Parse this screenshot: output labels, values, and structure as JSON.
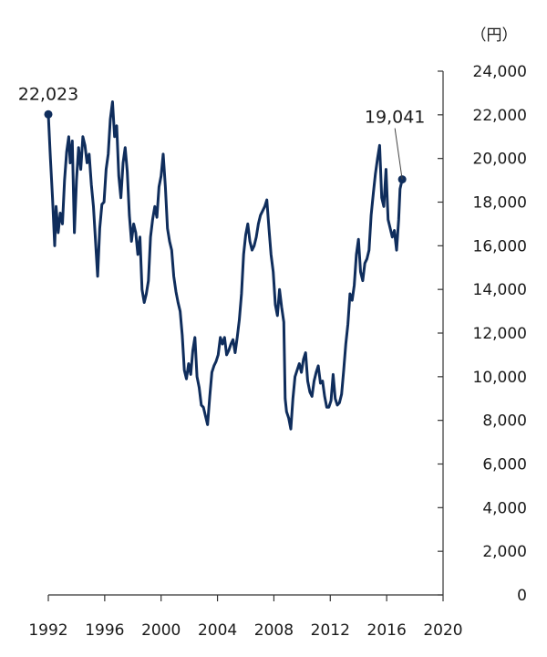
{
  "chart_data": {
    "type": "line",
    "unit_label": "（円）",
    "x_axis": {
      "min": 1992,
      "max": 2020,
      "ticks": [
        1992,
        1996,
        2000,
        2004,
        2008,
        2012,
        2016,
        2020
      ],
      "tick_labels": [
        "1992",
        "1996",
        "2000",
        "2004",
        "2008",
        "2012",
        "2016",
        "2020"
      ]
    },
    "y_axis": {
      "min": 0,
      "max": 24000,
      "position": "right",
      "ticks": [
        0,
        2000,
        4000,
        6000,
        8000,
        10000,
        12000,
        14000,
        16000,
        18000,
        20000,
        22000,
        24000
      ],
      "tick_labels": [
        "0",
        "2,000",
        "4,000",
        "6,000",
        "8,000",
        "10,000",
        "12,000",
        "14,000",
        "16,000",
        "18,000",
        "20,000",
        "22,000",
        "24,000"
      ]
    },
    "grid": false,
    "legend": "none",
    "colors": {
      "line": "#0f2d5c",
      "axis": "#333333"
    },
    "series": [
      {
        "points": [
          [
            1992.0,
            22023
          ],
          [
            1992.15,
            20000
          ],
          [
            1992.3,
            18200
          ],
          [
            1992.45,
            16000
          ],
          [
            1992.55,
            17800
          ],
          [
            1992.7,
            16600
          ],
          [
            1992.85,
            17500
          ],
          [
            1993.0,
            17000
          ],
          [
            1993.15,
            19000
          ],
          [
            1993.3,
            20300
          ],
          [
            1993.45,
            21000
          ],
          [
            1993.55,
            19800
          ],
          [
            1993.7,
            20800
          ],
          [
            1993.85,
            16600
          ],
          [
            1994.0,
            19000
          ],
          [
            1994.15,
            20500
          ],
          [
            1994.3,
            19500
          ],
          [
            1994.45,
            21000
          ],
          [
            1994.6,
            20600
          ],
          [
            1994.75,
            19800
          ],
          [
            1994.9,
            20200
          ],
          [
            1995.05,
            18800
          ],
          [
            1995.2,
            17800
          ],
          [
            1995.35,
            16200
          ],
          [
            1995.5,
            14600
          ],
          [
            1995.65,
            16800
          ],
          [
            1995.8,
            17900
          ],
          [
            1995.95,
            18000
          ],
          [
            1996.1,
            19500
          ],
          [
            1996.25,
            20200
          ],
          [
            1996.4,
            21800
          ],
          [
            1996.55,
            22600
          ],
          [
            1996.7,
            21000
          ],
          [
            1996.85,
            21500
          ],
          [
            1997.0,
            19200
          ],
          [
            1997.15,
            18200
          ],
          [
            1997.3,
            19800
          ],
          [
            1997.45,
            20500
          ],
          [
            1997.6,
            19400
          ],
          [
            1997.75,
            17400
          ],
          [
            1997.9,
            16200
          ],
          [
            1998.05,
            17000
          ],
          [
            1998.2,
            16600
          ],
          [
            1998.35,
            15600
          ],
          [
            1998.5,
            16400
          ],
          [
            1998.65,
            14000
          ],
          [
            1998.8,
            13400
          ],
          [
            1998.95,
            13800
          ],
          [
            1999.1,
            14400
          ],
          [
            1999.25,
            16400
          ],
          [
            1999.4,
            17200
          ],
          [
            1999.55,
            17800
          ],
          [
            1999.7,
            17300
          ],
          [
            1999.85,
            18700
          ],
          [
            2000.0,
            19200
          ],
          [
            2000.15,
            20200
          ],
          [
            2000.3,
            18700
          ],
          [
            2000.45,
            16800
          ],
          [
            2000.6,
            16200
          ],
          [
            2000.75,
            15800
          ],
          [
            2000.9,
            14600
          ],
          [
            2001.05,
            13900
          ],
          [
            2001.2,
            13400
          ],
          [
            2001.35,
            13000
          ],
          [
            2001.5,
            11900
          ],
          [
            2001.65,
            10300
          ],
          [
            2001.8,
            9900
          ],
          [
            2001.95,
            10600
          ],
          [
            2002.1,
            10100
          ],
          [
            2002.25,
            11200
          ],
          [
            2002.4,
            11800
          ],
          [
            2002.55,
            10000
          ],
          [
            2002.7,
            9500
          ],
          [
            2002.85,
            8700
          ],
          [
            2003.0,
            8600
          ],
          [
            2003.15,
            8200
          ],
          [
            2003.3,
            7800
          ],
          [
            2003.45,
            9100
          ],
          [
            2003.6,
            10200
          ],
          [
            2003.75,
            10500
          ],
          [
            2003.9,
            10700
          ],
          [
            2004.05,
            11000
          ],
          [
            2004.2,
            11800
          ],
          [
            2004.35,
            11500
          ],
          [
            2004.5,
            11800
          ],
          [
            2004.65,
            11000
          ],
          [
            2004.8,
            11200
          ],
          [
            2004.95,
            11500
          ],
          [
            2005.1,
            11700
          ],
          [
            2005.25,
            11100
          ],
          [
            2005.4,
            11800
          ],
          [
            2005.55,
            12600
          ],
          [
            2005.7,
            13800
          ],
          [
            2005.85,
            15600
          ],
          [
            2006.0,
            16500
          ],
          [
            2006.15,
            17000
          ],
          [
            2006.3,
            16200
          ],
          [
            2006.45,
            15800
          ],
          [
            2006.6,
            16000
          ],
          [
            2006.75,
            16400
          ],
          [
            2006.9,
            17000
          ],
          [
            2007.05,
            17400
          ],
          [
            2007.2,
            17600
          ],
          [
            2007.35,
            17800
          ],
          [
            2007.5,
            18100
          ],
          [
            2007.65,
            16800
          ],
          [
            2007.8,
            15600
          ],
          [
            2007.95,
            14800
          ],
          [
            2008.1,
            13300
          ],
          [
            2008.25,
            12800
          ],
          [
            2008.4,
            14000
          ],
          [
            2008.55,
            13200
          ],
          [
            2008.7,
            12500
          ],
          [
            2008.8,
            9000
          ],
          [
            2008.9,
            8400
          ],
          [
            2009.05,
            8100
          ],
          [
            2009.2,
            7600
          ],
          [
            2009.35,
            9000
          ],
          [
            2009.5,
            10000
          ],
          [
            2009.65,
            10300
          ],
          [
            2009.8,
            10600
          ],
          [
            2009.95,
            10200
          ],
          [
            2010.1,
            10800
          ],
          [
            2010.25,
            11100
          ],
          [
            2010.4,
            9800
          ],
          [
            2010.55,
            9300
          ],
          [
            2010.7,
            9100
          ],
          [
            2010.85,
            9800
          ],
          [
            2011.0,
            10200
          ],
          [
            2011.15,
            10500
          ],
          [
            2011.3,
            9700
          ],
          [
            2011.45,
            9800
          ],
          [
            2011.6,
            9100
          ],
          [
            2011.75,
            8600
          ],
          [
            2011.9,
            8600
          ],
          [
            2012.05,
            8900
          ],
          [
            2012.2,
            10100
          ],
          [
            2012.35,
            9000
          ],
          [
            2012.5,
            8700
          ],
          [
            2012.65,
            8800
          ],
          [
            2012.8,
            9200
          ],
          [
            2012.95,
            10300
          ],
          [
            2013.1,
            11500
          ],
          [
            2013.25,
            12400
          ],
          [
            2013.4,
            13800
          ],
          [
            2013.55,
            13500
          ],
          [
            2013.7,
            14200
          ],
          [
            2013.85,
            15600
          ],
          [
            2014.0,
            16300
          ],
          [
            2014.15,
            14800
          ],
          [
            2014.3,
            14400
          ],
          [
            2014.45,
            15200
          ],
          [
            2014.6,
            15400
          ],
          [
            2014.75,
            15800
          ],
          [
            2014.9,
            17400
          ],
          [
            2015.05,
            18400
          ],
          [
            2015.2,
            19300
          ],
          [
            2015.35,
            20000
          ],
          [
            2015.5,
            20600
          ],
          [
            2015.65,
            18200
          ],
          [
            2015.8,
            17800
          ],
          [
            2015.95,
            19500
          ],
          [
            2016.1,
            17200
          ],
          [
            2016.25,
            16800
          ],
          [
            2016.4,
            16400
          ],
          [
            2016.55,
            16700
          ],
          [
            2016.7,
            15800
          ],
          [
            2016.85,
            17200
          ],
          [
            2016.95,
            18600
          ],
          [
            2017.1,
            19041
          ]
        ]
      }
    ],
    "annotations": [
      {
        "text": "22,023",
        "x": 1992.0,
        "y": 22023
      },
      {
        "text": "19,041",
        "x": 2017.1,
        "y": 19041
      }
    ]
  }
}
